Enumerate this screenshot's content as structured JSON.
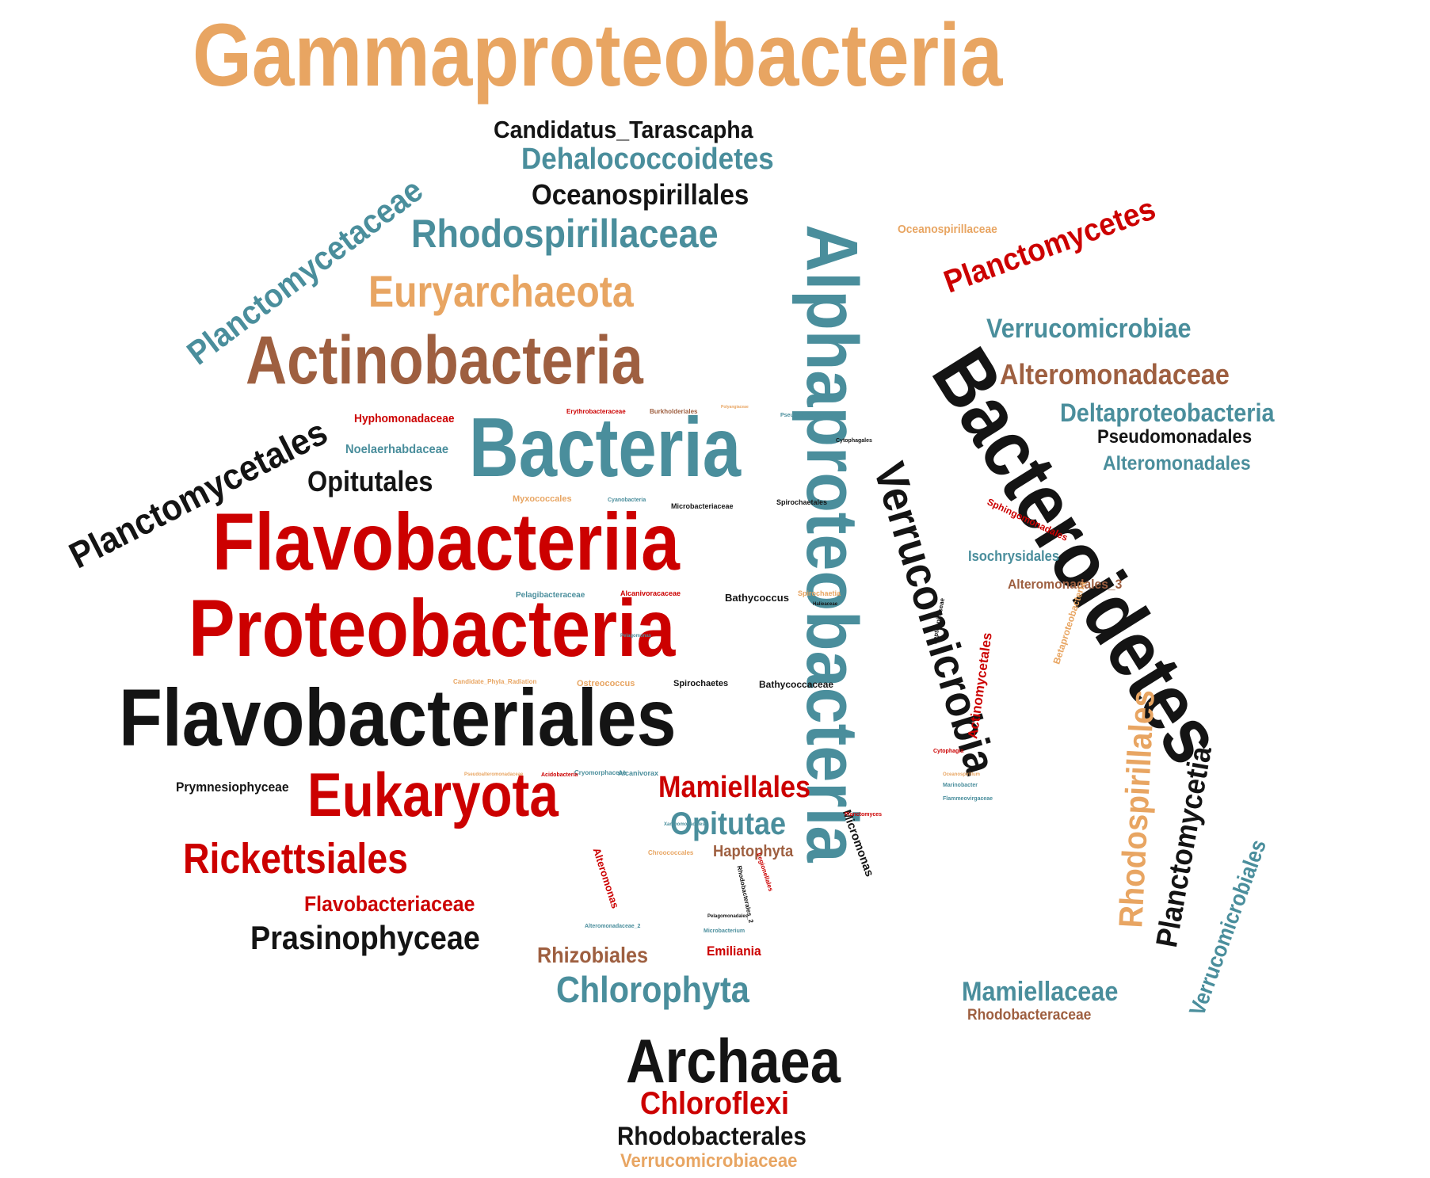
{
  "colors": {
    "orange": "#E8A562",
    "teal": "#4A8E9C",
    "black": "#141414",
    "red": "#CC0000",
    "brown": "#9E5F40",
    "background": "#FFFFFF"
  },
  "words": {
    "gammaproteobacteria": "Gammaproteobacteria",
    "alphaproteobacteria": "Alphaproteobacteria",
    "bacteroidetes": "Bacteroidetes",
    "verrucomicrobia": "Verrucomicrobia",
    "flavobacteriales": "Flavobacteriales",
    "flavobacteriia": "Flavobacteriia",
    "proteobacteria": "Proteobacteria",
    "bacteria": "Bacteria",
    "actinobacteria": "Actinobacteria",
    "euryarchaeota": "Euryarchaeota",
    "planctomycetaceae": "Planctomycetaceae",
    "planctomycetales": "Planctomycetales",
    "planctomycetes": "Planctomycetes",
    "planctomycetia": "Planctomycetia",
    "rhodospirillales": "Rhodospirillales",
    "verrucomicrobiales": "Verrucomicrobiales",
    "eukaryota": "Eukaryota",
    "rickettsiales": "Rickettsiales",
    "archaea": "Archaea",
    "candidatus_tarascapha": "Candidatus_Tarascapha",
    "dehalococcoidetes": "Dehalococcoidetes",
    "oceanospirillales": "Oceanospirillales",
    "rhodospirillaceae": "Rhodospirillaceae",
    "verrucomicrobiae": "Verrucomicrobiae",
    "alteromonadaceae": "Alteromonadaceae",
    "deltaproteobacteria": "Deltaproteobacteria",
    "pseudomonadales": "Pseudomonadales",
    "alteromonadales": "Alteromonadales",
    "opitutales": "Opitutales",
    "hyphomonadaceae": "Hyphomonadaceae",
    "noelaerhabdaceae": "Noelaerhabdaceae",
    "mamiellales": "Mamiellales",
    "opitutae": "Opitutae",
    "prymnesiophyceae": "Prymnesiophyceae",
    "flavobacteriaceae": "Flavobacteriaceae",
    "prasinophyceae": "Prasinophyceae",
    "rhizobiales": "Rhizobiales",
    "chlorophyta": "Chlorophyta",
    "mamiellaceae": "Mamiellaceae",
    "rhodobacteraceae": "Rhodobacteraceae",
    "chloroflexi": "Chloroflexi",
    "rhodobacterales": "Rhodobacterales",
    "verrucomicrobiaceae": "Verrucomicrobiaceae",
    "haptophyta": "Haptophyta",
    "emiliania": "Emiliania",
    "isochrysidales": "Isochrysidales",
    "alteromonadales_3": "Alteromonadales_3",
    "oceanospirillaceae": "Oceanospirillaceae",
    "sphingomonadales": "Sphingomonadales",
    "betaproteobacteria": "Betaproteobacteria",
    "actinomycetales": "Actinomycetales",
    "micromonas": "Micromonas",
    "alteromonas": "Alteromonas",
    "bathycoccus": "Bathycoccus",
    "bathycoccaceae": "Bathycoccaceae",
    "spirochaetes": "Spirochaetes",
    "ostreococcus": "Ostreococcus",
    "myxococcales": "Myxococcales",
    "pelagibacteraceae": "Pelagibacteraceae",
    "alcanivoracaceae": "Alcanivoracaceae",
    "spirochaetia": "Spirochaetia",
    "microbacteriaceae": "Microbacteriaceae",
    "spirochaetales": "Spirochaetales",
    "cyanobacteria": "Cyanobacteria",
    "erythrobacteraceae": "Erythrobacteraceae",
    "burkholderiales": "Burkholderiales",
    "pseudoalteromonas": "Pseudoalteromonas",
    "cytophagales": "Cytophagales",
    "candidate_phyla_radiation": "Candidate_Phyla_Radiation",
    "alcanivorax": "Alcanivorax",
    "chroococcales": "Chroococcales",
    "cryomorphaceae": "Cryomorphaceae",
    "acidobacteria": "Acidobacteria",
    "pseudoalteromonadaceae": "Pseudoalteromonadaceae",
    "legionellales": "Legionellales",
    "rhodobacterales_2": "Rhodobacterales_2",
    "alteromonadaceae_2": "Alteromonadaceae_2",
    "microbacterium": "Microbacterium",
    "pelagomonadales": "Pelagomonadales",
    "leptospiraceae": "Leptospiraceae",
    "planctomyces": "Planctomyces",
    "cytophagia": "Cytophagia",
    "marinobacter": "Marinobacter",
    "flammeovirgaceae": "Flammeovirgaceae",
    "oceanospirillum": "Oceanospirillum",
    "xanthomonadales": "Xanthomonadales",
    "halieaceae": "Halieaceae",
    "polyangiaceae": "Polyangiaceae",
    "pelagomonas": "Pelagomonas"
  }
}
